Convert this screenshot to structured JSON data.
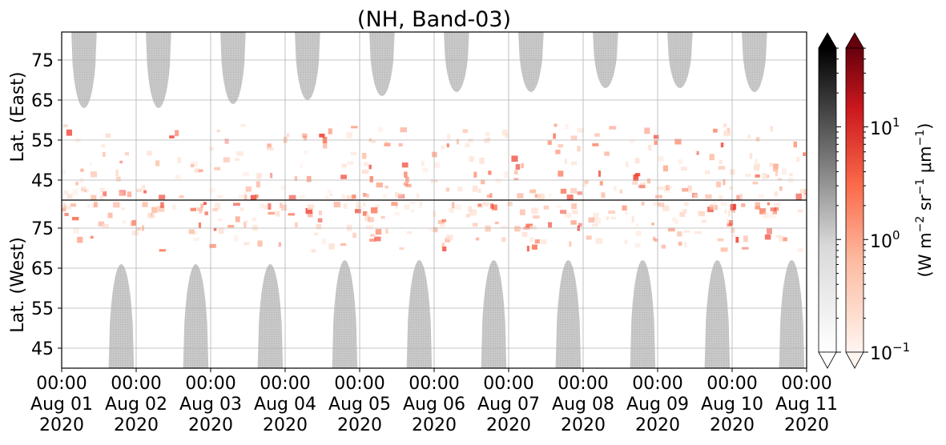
{
  "chart_data": {
    "type": "heatmap",
    "title": "(NH, Band-03)",
    "x_range": [
      "2020-08-01 00:00",
      "2020-08-11 00:00"
    ],
    "x_ticks": [
      {
        "time": "00:00",
        "day": "Aug 01",
        "year": "2020"
      },
      {
        "time": "00:00",
        "day": "Aug 02",
        "year": "2020"
      },
      {
        "time": "00:00",
        "day": "Aug 03",
        "year": "2020"
      },
      {
        "time": "00:00",
        "day": "Aug 04",
        "year": "2020"
      },
      {
        "time": "00:00",
        "day": "Aug 05",
        "year": "2020"
      },
      {
        "time": "00:00",
        "day": "Aug 06",
        "year": "2020"
      },
      {
        "time": "00:00",
        "day": "Aug 07",
        "year": "2020"
      },
      {
        "time": "00:00",
        "day": "Aug 08",
        "year": "2020"
      },
      {
        "time": "00:00",
        "day": "Aug 09",
        "year": "2020"
      },
      {
        "time": "00:00",
        "day": "Aug 10",
        "year": "2020"
      },
      {
        "time": "00:00",
        "day": "Aug 11",
        "year": "2020"
      }
    ],
    "panels": [
      {
        "ylabel": "Lat. (East)",
        "yticks": [
          "45",
          "55",
          "65",
          "75"
        ],
        "ylim": [
          40,
          82
        ]
      },
      {
        "ylabel": "Lat. (West)",
        "yticks": [
          "75",
          "65",
          "55",
          "45"
        ],
        "ylim": [
          82,
          40
        ]
      }
    ],
    "grid": true,
    "colorbars": [
      {
        "name": "Greys",
        "scale": "log",
        "extend": "both",
        "top_color": "#000000",
        "bottom_color": "#ffffff"
      },
      {
        "name": "Reds",
        "scale": "log",
        "extend": "both",
        "top_color": "#67000d",
        "bottom_color": "#fff5f0",
        "label_base": "(W m",
        "label_exp1": "−2",
        "label_mid": " sr",
        "label_exp2": "−1",
        "label_mu": " μm",
        "label_exp3": "−1",
        "label_end": ")",
        "tick_labels": [
          {
            "base": "10",
            "exp": "1"
          },
          {
            "base": "10",
            "exp": "0"
          },
          {
            "base": "10",
            "exp": "−1"
          }
        ]
      }
    ],
    "east_dark_regions": [
      {
        "center_day": 0.3,
        "min_lat": 63
      },
      {
        "center_day": 1.3,
        "min_lat": 63
      },
      {
        "center_day": 2.3,
        "min_lat": 64
      },
      {
        "center_day": 3.3,
        "min_lat": 65
      },
      {
        "center_day": 4.3,
        "min_lat": 66
      },
      {
        "center_day": 5.3,
        "min_lat": 67
      },
      {
        "center_day": 6.3,
        "min_lat": 67
      },
      {
        "center_day": 7.3,
        "min_lat": 68
      },
      {
        "center_day": 8.3,
        "min_lat": 68
      },
      {
        "center_day": 9.3,
        "min_lat": 67
      }
    ],
    "west_dark_regions": [
      {
        "center_day": 0.8,
        "min_lat": 66
      },
      {
        "center_day": 1.8,
        "min_lat": 66
      },
      {
        "center_day": 2.8,
        "min_lat": 66
      },
      {
        "center_day": 3.8,
        "min_lat": 67
      },
      {
        "center_day": 4.8,
        "min_lat": 67
      },
      {
        "center_day": 5.8,
        "min_lat": 67
      },
      {
        "center_day": 6.8,
        "min_lat": 67
      },
      {
        "center_day": 7.8,
        "min_lat": 67
      },
      {
        "center_day": 8.8,
        "min_lat": 67
      },
      {
        "center_day": 9.8,
        "min_lat": 67
      }
    ]
  }
}
